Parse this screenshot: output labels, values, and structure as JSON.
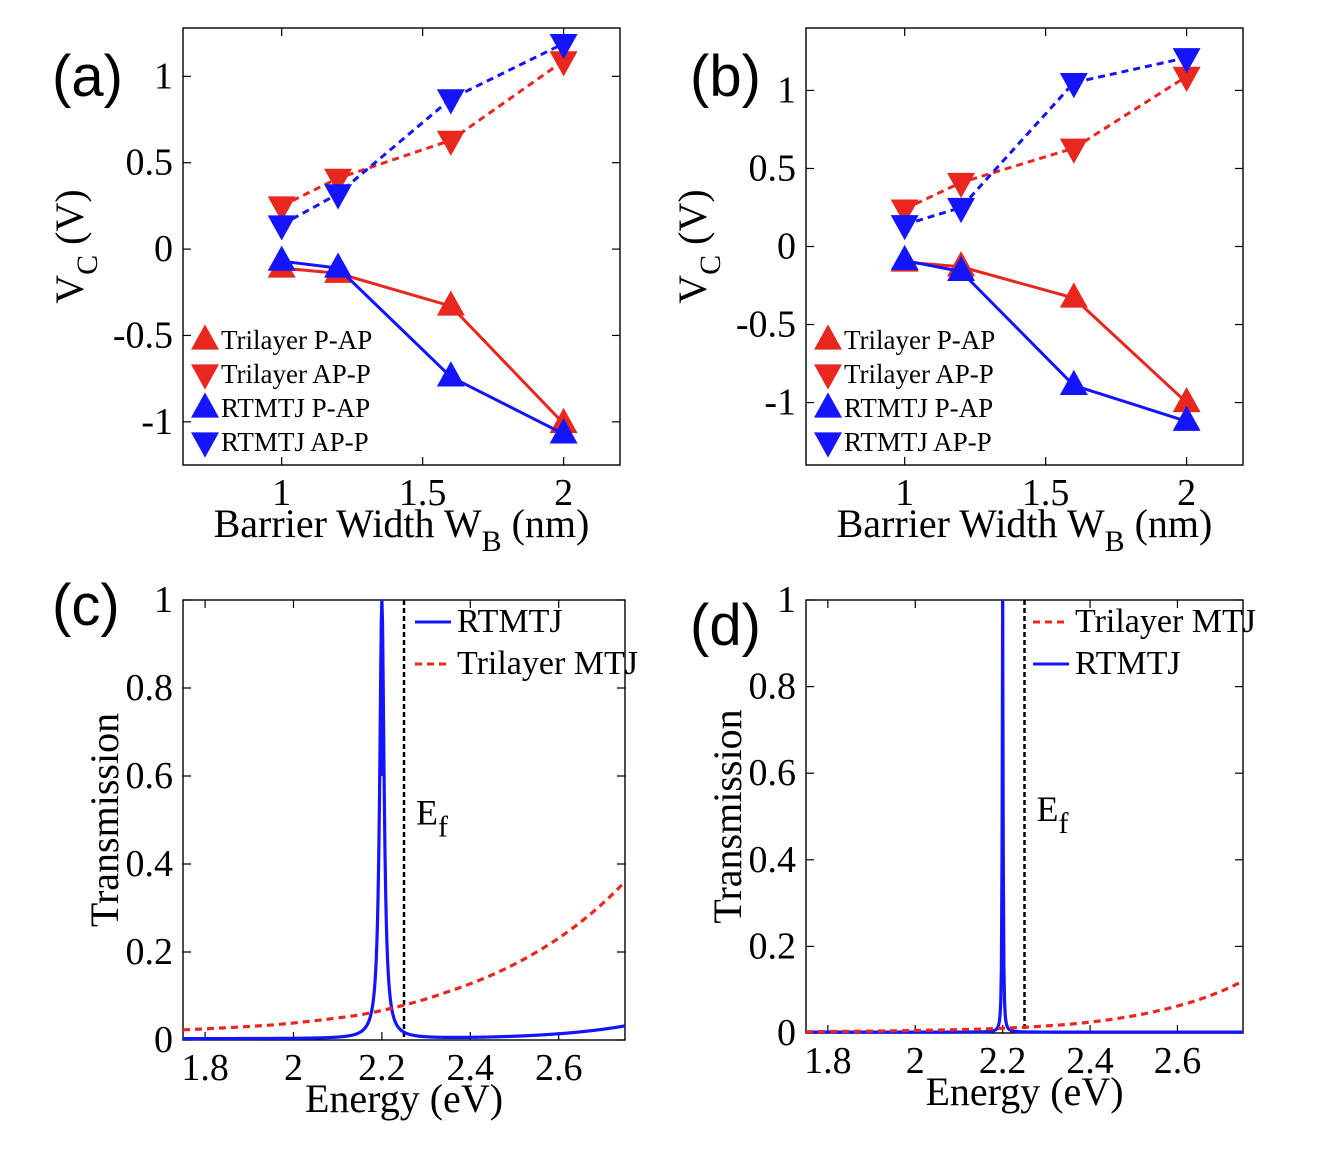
{
  "chart_data": [
    {
      "panel_label": "(a)",
      "type": "line",
      "xlabel": "Barrier Width W",
      "xlabel_sub": "B",
      "xlabel_unit": "(nm)",
      "ylabel": "V",
      "ylabel_sub": "C",
      "ylabel_unit": "(V)",
      "xlim": [
        0.65,
        2.2
      ],
      "ylim": [
        -1.25,
        1.28
      ],
      "xticks": [
        1,
        1.5,
        2
      ],
      "xtick_labels": [
        "1",
        "1.5",
        "2"
      ],
      "yticks": [
        1,
        0.5,
        0,
        -0.5,
        -1
      ],
      "ytick_labels": [
        "1",
        "0.5",
        "0",
        "-0.5",
        "-1"
      ],
      "x": [
        1,
        1.2,
        1.6,
        2
      ],
      "series": [
        {
          "name": "Trilayer P-AP",
          "color": "#e8281e",
          "marker": "up",
          "dash": false,
          "values": [
            -0.11,
            -0.14,
            -0.33,
            -1.01
          ]
        },
        {
          "name": "Trilayer AP-P",
          "color": "#e8281e",
          "marker": "down",
          "dash": true,
          "values": [
            0.25,
            0.41,
            0.63,
            1.09
          ]
        },
        {
          "name": "RTMTJ P-AP",
          "color": "#1414ff",
          "marker": "up",
          "dash": false,
          "values": [
            -0.07,
            -0.11,
            -0.74,
            -1.07
          ]
        },
        {
          "name": "RTMTJ AP-P",
          "color": "#1414ff",
          "marker": "down",
          "dash": true,
          "values": [
            0.14,
            0.32,
            0.87,
            1.19
          ]
        }
      ]
    },
    {
      "panel_label": "(b)",
      "type": "line",
      "xlabel": "Barrier Width W",
      "xlabel_sub": "B",
      "xlabel_unit": "(nm)",
      "ylabel": "V",
      "ylabel_sub": "C",
      "ylabel_unit": "(V)",
      "xlim": [
        0.65,
        2.2
      ],
      "ylim": [
        -1.4,
        1.4
      ],
      "xticks": [
        1,
        1.5,
        2
      ],
      "xtick_labels": [
        "1",
        "1.5",
        "2"
      ],
      "yticks": [
        1,
        0.5,
        0,
        -0.5,
        -1
      ],
      "ytick_labels": [
        "1",
        "0.5",
        "0",
        "-0.5",
        "-1"
      ],
      "x": [
        1,
        1.2,
        1.6,
        2
      ],
      "series": [
        {
          "name": "Trilayer P-AP",
          "color": "#e8281e",
          "marker": "up",
          "dash": false,
          "values": [
            -0.1,
            -0.13,
            -0.33,
            -1.0
          ]
        },
        {
          "name": "Trilayer AP-P",
          "color": "#e8281e",
          "marker": "down",
          "dash": true,
          "values": [
            0.24,
            0.41,
            0.63,
            1.09
          ]
        },
        {
          "name": "RTMTJ P-AP",
          "color": "#1414ff",
          "marker": "up",
          "dash": false,
          "values": [
            -0.09,
            -0.16,
            -0.89,
            -1.12
          ]
        },
        {
          "name": "RTMTJ AP-P",
          "color": "#1414ff",
          "marker": "down",
          "dash": true,
          "values": [
            0.14,
            0.25,
            1.05,
            1.21
          ]
        }
      ]
    },
    {
      "panel_label": "(c)",
      "type": "line",
      "xlabel": "Energy (eV)",
      "ylabel": "Transmission",
      "xlim": [
        1.75,
        2.75
      ],
      "ylim": [
        0,
        1
      ],
      "xticks": [
        1.8,
        2.0,
        2.2,
        2.4,
        2.6
      ],
      "xtick_labels": [
        "1.8",
        "2",
        "2.2",
        "2.4",
        "2.6"
      ],
      "yticks": [
        1,
        0.8,
        0.6,
        0.4,
        0.2,
        0
      ],
      "ytick_labels": [
        "1",
        "0.8",
        "0.6",
        "0.4",
        "0.2",
        "0"
      ],
      "fermi_label": "E",
      "fermi_sub": "f",
      "fermi_energy": 2.25,
      "legend_order": [
        "RTMTJ",
        "Trilayer MTJ"
      ],
      "series": [
        {
          "name": "RTMTJ",
          "color": "#1414ff",
          "dash": false,
          "kind": "resonance",
          "peak_energy": 2.2,
          "peak_height": 1.0,
          "half_width": 0.006,
          "background": [
            0.003,
            0.032
          ]
        },
        {
          "name": "Trilayer MTJ",
          "color": "#e8281e",
          "dash": true,
          "kind": "exponential",
          "values": [
            0.023,
            0.034,
            0.057,
            0.11,
            0.2,
            0.36
          ],
          "x": [
            1.75,
            1.95,
            2.15,
            2.35,
            2.55,
            2.75
          ]
        }
      ]
    },
    {
      "panel_label": "(d)",
      "type": "line",
      "xlabel": "Energy (eV)",
      "ylabel": "Transmission",
      "xlim": [
        1.75,
        2.75
      ],
      "ylim": [
        0,
        1
      ],
      "xticks": [
        1.8,
        2.0,
        2.2,
        2.4,
        2.6
      ],
      "xtick_labels": [
        "1.8",
        "2",
        "2.2",
        "2.4",
        "2.6"
      ],
      "yticks": [
        1,
        0.8,
        0.6,
        0.4,
        0.2,
        0
      ],
      "ytick_labels": [
        "1",
        "0.8",
        "0.6",
        "0.4",
        "0.2",
        "0"
      ],
      "fermi_label": "E",
      "fermi_sub": "f",
      "fermi_energy": 2.25,
      "legend_order": [
        "Trilayer MTJ",
        "RTMTJ"
      ],
      "series": [
        {
          "name": "RTMTJ",
          "color": "#1414ff",
          "dash": false,
          "kind": "resonance",
          "peak_energy": 2.2,
          "peak_height": 1.0,
          "half_width": 0.0012,
          "background": [
            0.002,
            0.002
          ]
        },
        {
          "name": "Trilayer MTJ",
          "color": "#e8281e",
          "dash": true,
          "kind": "exponential",
          "values": [
            0.003,
            0.005,
            0.009,
            0.02,
            0.05,
            0.12
          ],
          "x": [
            1.75,
            1.95,
            2.15,
            2.35,
            2.55,
            2.75
          ]
        }
      ]
    }
  ]
}
